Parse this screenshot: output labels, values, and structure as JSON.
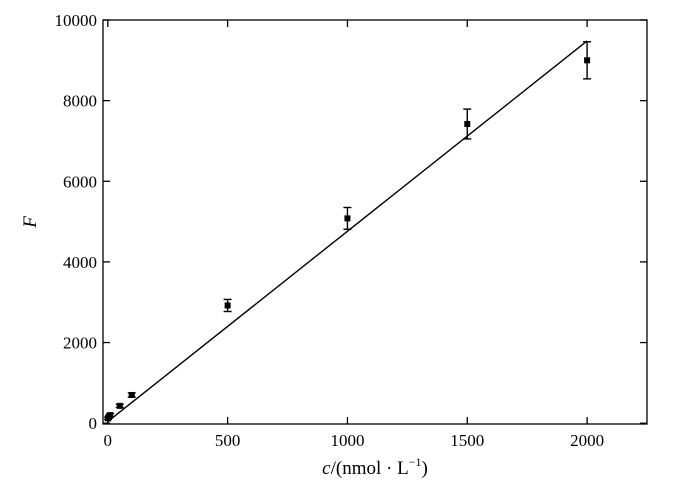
{
  "chart_data": {
    "type": "scatter",
    "xlabel": {
      "var": "c",
      "unit_prefix": "/(nmol · L",
      "unit_sup": "−1",
      "unit_suffix": ")"
    },
    "ylabel": "F",
    "xlim": [
      -20,
      2250
    ],
    "ylim": [
      -20,
      10000
    ],
    "x_ticks": [
      0,
      500,
      1000,
      1500,
      2000
    ],
    "x_tick_labels": [
      "0",
      "500",
      "1000",
      "1500",
      "2000"
    ],
    "y_ticks": [
      0,
      2000,
      4000,
      6000,
      8000,
      10000
    ],
    "y_tick_labels": [
      "0",
      "2000",
      "4000",
      "6000",
      "8000",
      "10000"
    ],
    "points": [
      {
        "x": 1,
        "y": 120,
        "err": 30
      },
      {
        "x": 5,
        "y": 160,
        "err": 30
      },
      {
        "x": 10,
        "y": 200,
        "err": 40
      },
      {
        "x": 50,
        "y": 430,
        "err": 40
      },
      {
        "x": 100,
        "y": 700,
        "err": 50
      },
      {
        "x": 500,
        "y": 2920,
        "err": 150
      },
      {
        "x": 1000,
        "y": 5080,
        "err": 270
      },
      {
        "x": 1500,
        "y": 7420,
        "err": 370
      },
      {
        "x": 2000,
        "y": 9000,
        "err": 460
      }
    ],
    "fit_line": {
      "x": [
        0,
        2000
      ],
      "y": [
        40,
        9480
      ]
    },
    "grid": false,
    "legend": "none"
  }
}
